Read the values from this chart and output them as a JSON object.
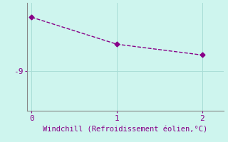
{
  "x": [
    0,
    1,
    2
  ],
  "y": [
    -6.0,
    -7.5,
    -8.1
  ],
  "line_color": "#880088",
  "marker": "D",
  "marker_size": 3.5,
  "linestyle": "--",
  "linewidth": 1.0,
  "background_color": "#cef5ee",
  "xlabel": "Windchill (Refroidissement éolien,°C)",
  "xlabel_color": "#880088",
  "xlabel_fontsize": 7.5,
  "tick_color": "#880088",
  "tick_fontsize": 8,
  "yticks": [
    -9
  ],
  "ytick_labels": [
    "-9"
  ],
  "xticks": [
    0,
    1,
    2
  ],
  "xlim": [
    -0.05,
    2.25
  ],
  "ylim": [
    -11.2,
    -5.2
  ],
  "grid_color": "#a8ddd6",
  "grid_linewidth": 0.7,
  "spine_color": "#888888",
  "font_family": "monospace"
}
